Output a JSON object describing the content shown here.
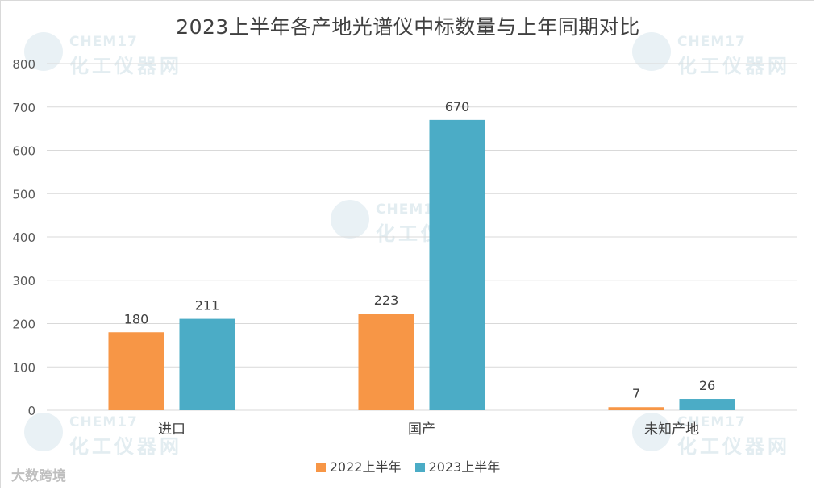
{
  "chart_data": {
    "type": "bar",
    "title": "2023上半年各产地光谱仪中标数量与上年同期对比",
    "categories": [
      "进口",
      "国产",
      "未知产地"
    ],
    "series": [
      {
        "name": "2022上半年",
        "values": [
          180,
          223,
          7
        ],
        "color": "#F79646"
      },
      {
        "name": "2023上半年",
        "values": [
          211,
          670,
          26
        ],
        "color": "#4BACC6"
      }
    ],
    "ylim": [
      0,
      800
    ],
    "yticks": [
      0,
      100,
      200,
      300,
      400,
      500,
      600,
      700,
      800
    ],
    "grid": true,
    "legend_position": "bottom",
    "data_labels": true
  },
  "watermark": {
    "line1": "CHEM17",
    "line2": "化工仪器网"
  },
  "brand": "大数跨境"
}
